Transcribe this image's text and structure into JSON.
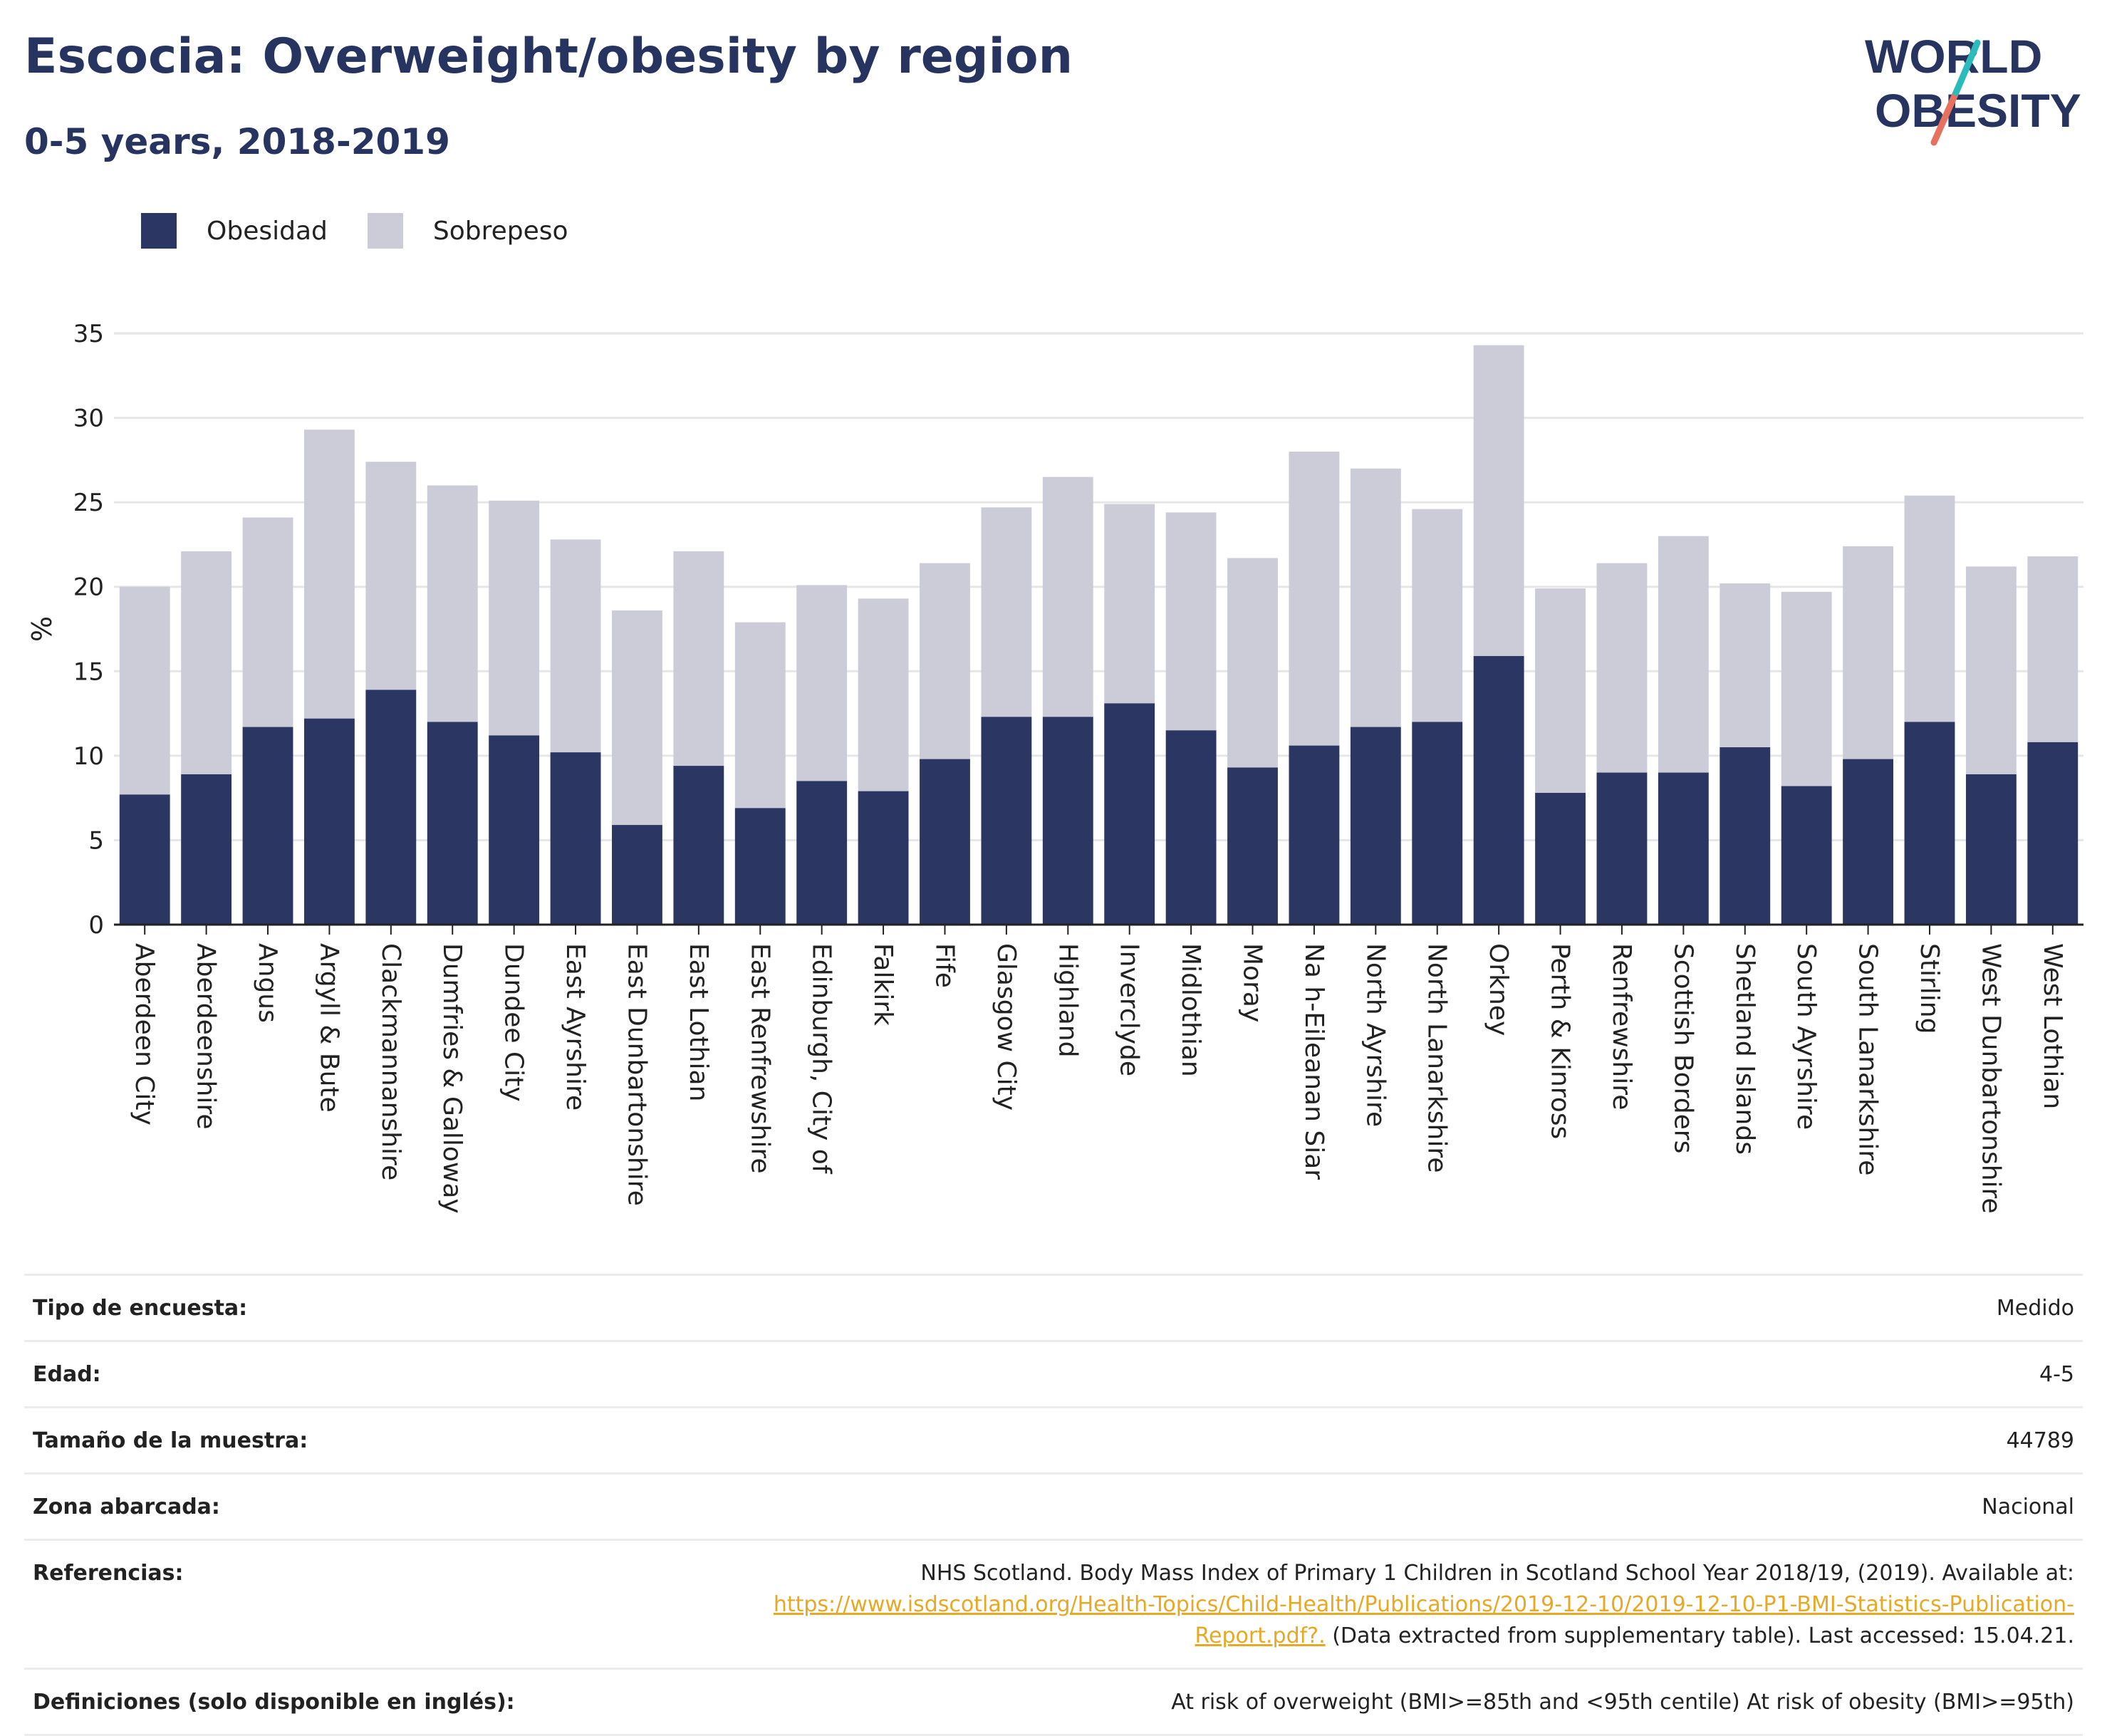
{
  "header": {
    "title": "Escocia: Overweight/obesity by region",
    "subtitle": "0-5 years, 2018-2019"
  },
  "logo": {
    "line1": "WORLD",
    "line2": "OBESITY",
    "colors": {
      "text": "#283460",
      "slash_teal": "#2bbbbb",
      "slash_coral": "#e8705e"
    }
  },
  "colors": {
    "obesidad": "#2b3663",
    "sobrepeso": "#cbccd8",
    "grid": "#e6e6e6"
  },
  "chart_data": {
    "type": "bar",
    "stacked": true,
    "ylabel": "%",
    "ylim": [
      0,
      35
    ],
    "yticks": [
      0,
      5,
      10,
      15,
      20,
      25,
      30,
      35
    ],
    "grid": true,
    "legend_position": "top-left",
    "categories": [
      "Aberdeen City",
      "Aberdeenshire",
      "Angus",
      "Argyll & Bute",
      "Clackmannanshire",
      "Dumfries & Galloway",
      "Dundee City",
      "East Ayrshire",
      "East Dunbartonshire",
      "East Lothian",
      "East Renfrewshire",
      "Edinburgh, City of",
      "Falkirk",
      "Fife",
      "Glasgow City",
      "Highland",
      "Inverclyde",
      "Midlothian",
      "Moray",
      "Na h-Eileanan Siar",
      "North Ayrshire",
      "North Lanarkshire",
      "Orkney",
      "Perth & Kinross",
      "Renfrewshire",
      "Scottish Borders",
      "Shetland Islands",
      "South Ayrshire",
      "South Lanarkshire",
      "Stirling",
      "West Dunbartonshire",
      "West Lothian"
    ],
    "series": [
      {
        "name": "Obesidad",
        "values": [
          7.7,
          8.9,
          11.7,
          12.2,
          13.9,
          12.0,
          11.2,
          10.2,
          5.9,
          9.4,
          6.9,
          8.5,
          7.9,
          9.8,
          12.3,
          12.3,
          13.1,
          11.5,
          9.3,
          10.6,
          11.7,
          12.0,
          15.9,
          7.8,
          9.0,
          9.0,
          10.5,
          8.2,
          9.8,
          12.0,
          8.9,
          10.8
        ]
      },
      {
        "name": "Sobrepeso",
        "values": [
          12.3,
          13.2,
          12.4,
          17.1,
          13.5,
          14.0,
          13.9,
          12.6,
          12.7,
          12.7,
          11.0,
          11.6,
          11.4,
          11.6,
          12.4,
          14.2,
          11.8,
          12.9,
          12.4,
          17.4,
          15.3,
          12.6,
          18.4,
          12.1,
          12.4,
          14.0,
          9.7,
          11.5,
          12.6,
          13.4,
          12.3,
          11.0
        ]
      }
    ]
  },
  "info_table": {
    "rows": [
      {
        "label": "Tipo de encuesta:",
        "value": "Medido"
      },
      {
        "label": "Edad:",
        "value": "4-5"
      },
      {
        "label": "Tamaño de la muestra:",
        "value": "44789"
      },
      {
        "label": "Zona abarcada:",
        "value": "Nacional"
      }
    ],
    "references": {
      "label": "Referencias:",
      "text_before": "NHS Scotland. Body Mass Index of Primary 1 Children in Scotland School Year 2018/19, (2019). Available at:",
      "link": "https://www.isdscotland.org/Health-Topics/Child-Health/Publications/2019-12-10/2019-12-10-P1-BMI-Statistics-Publication-Report.pdf?.",
      "text_after": "(Data extracted from supplementary table). Last accessed: 15.04.21."
    },
    "definitions": {
      "label": "Definiciones (solo disponible en inglés):",
      "value": "At risk of overweight (BMI>=85th and <95th centile) At risk of obesity (BMI>=95th)"
    }
  }
}
